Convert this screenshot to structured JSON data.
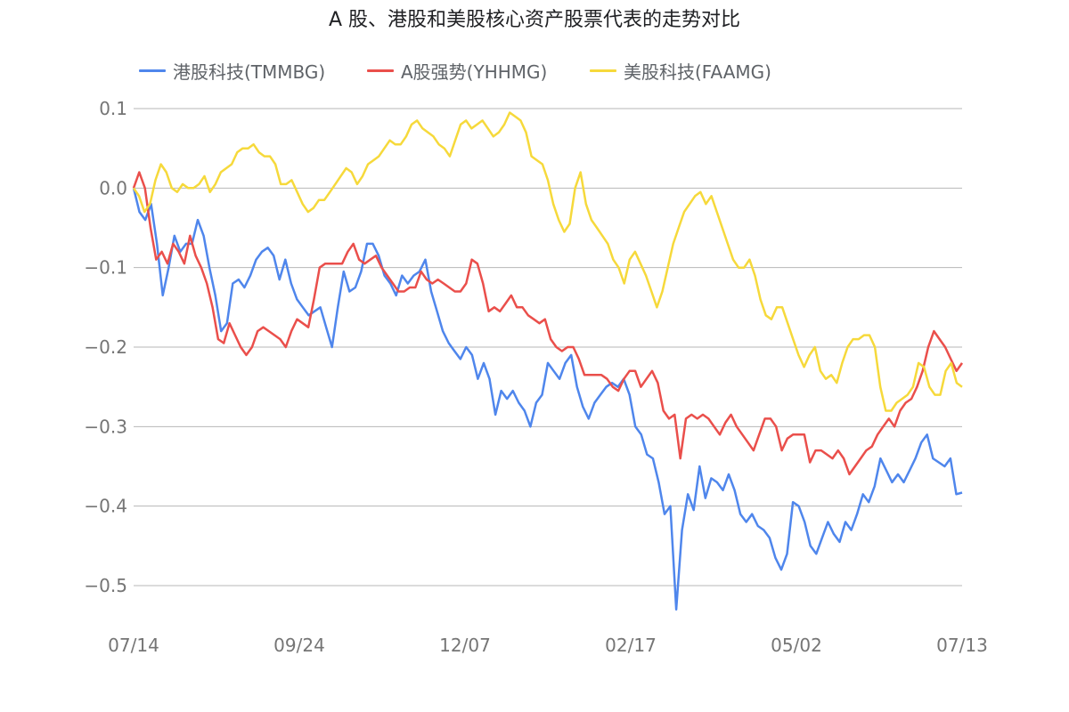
{
  "colors": {
    "hk_tech": "#4f86ec",
    "a_share": "#ea4f4b",
    "us_tech": "#f6d93b",
    "gridline": "#b7b7b7",
    "axis_text": "#757575",
    "title_text": "#202124"
  },
  "chart_data": {
    "type": "line",
    "title": "A 股、港股和美股核心资产股票代表的走势对比",
    "xlabel": "",
    "ylabel": "",
    "ylim": [
      -0.53,
      0.1
    ],
    "yticks": [
      0.1,
      0.0,
      -0.1,
      -0.2,
      -0.3,
      -0.4,
      -0.5
    ],
    "ytick_labels": [
      "0.1",
      "0.0",
      "−0.1",
      "−0.2",
      "−0.3",
      "−0.4",
      "−0.5"
    ],
    "xtick_labels": [
      "07/14",
      "09/24",
      "12/07",
      "02/17",
      "05/02",
      "07/13"
    ],
    "grid": true,
    "legend_position": "top",
    "series": [
      {
        "name": "港股科技(TMMBG)",
        "color_key": "hk_tech",
        "values": [
          0.0,
          -0.03,
          -0.04,
          -0.02,
          -0.07,
          -0.135,
          -0.1,
          -0.06,
          -0.08,
          -0.07,
          -0.07,
          -0.04,
          -0.06,
          -0.1,
          -0.135,
          -0.18,
          -0.17,
          -0.12,
          -0.115,
          -0.125,
          -0.11,
          -0.09,
          -0.08,
          -0.075,
          -0.085,
          -0.115,
          -0.09,
          -0.12,
          -0.14,
          -0.15,
          -0.16,
          -0.155,
          -0.15,
          -0.175,
          -0.2,
          -0.15,
          -0.105,
          -0.13,
          -0.125,
          -0.105,
          -0.07,
          -0.07,
          -0.085,
          -0.11,
          -0.12,
          -0.135,
          -0.11,
          -0.12,
          -0.11,
          -0.105,
          -0.09,
          -0.13,
          -0.155,
          -0.18,
          -0.195,
          -0.205,
          -0.215,
          -0.2,
          -0.21,
          -0.24,
          -0.22,
          -0.24,
          -0.285,
          -0.255,
          -0.265,
          -0.255,
          -0.27,
          -0.28,
          -0.3,
          -0.27,
          -0.26,
          -0.22,
          -0.23,
          -0.24,
          -0.22,
          -0.21,
          -0.25,
          -0.275,
          -0.29,
          -0.27,
          -0.26,
          -0.25,
          -0.245,
          -0.25,
          -0.24,
          -0.26,
          -0.3,
          -0.31,
          -0.335,
          -0.34,
          -0.37,
          -0.41,
          -0.4,
          -0.53,
          -0.43,
          -0.385,
          -0.405,
          -0.35,
          -0.39,
          -0.365,
          -0.37,
          -0.38,
          -0.36,
          -0.38,
          -0.41,
          -0.42,
          -0.41,
          -0.425,
          -0.43,
          -0.44,
          -0.465,
          -0.48,
          -0.46,
          -0.395,
          -0.4,
          -0.42,
          -0.45,
          -0.46,
          -0.44,
          -0.42,
          -0.435,
          -0.445,
          -0.42,
          -0.43,
          -0.41,
          -0.385,
          -0.395,
          -0.375,
          -0.34,
          -0.355,
          -0.37,
          -0.36,
          -0.37,
          -0.355,
          -0.34,
          -0.32,
          -0.31,
          -0.34,
          -0.345,
          -0.35,
          -0.34,
          -0.385,
          -0.383
        ]
      },
      {
        "name": "A股强势(YHHMG)",
        "color_key": "a_share",
        "values": [
          0.0,
          0.02,
          0.0,
          -0.05,
          -0.09,
          -0.08,
          -0.095,
          -0.07,
          -0.08,
          -0.095,
          -0.06,
          -0.085,
          -0.1,
          -0.12,
          -0.15,
          -0.19,
          -0.195,
          -0.17,
          -0.185,
          -0.2,
          -0.21,
          -0.2,
          -0.18,
          -0.175,
          -0.18,
          -0.185,
          -0.19,
          -0.2,
          -0.18,
          -0.165,
          -0.17,
          -0.175,
          -0.14,
          -0.1,
          -0.095,
          -0.095,
          -0.095,
          -0.095,
          -0.08,
          -0.07,
          -0.09,
          -0.095,
          -0.09,
          -0.085,
          -0.1,
          -0.11,
          -0.12,
          -0.13,
          -0.13,
          -0.125,
          -0.125,
          -0.105,
          -0.115,
          -0.12,
          -0.115,
          -0.12,
          -0.125,
          -0.13,
          -0.13,
          -0.12,
          -0.09,
          -0.095,
          -0.12,
          -0.155,
          -0.15,
          -0.155,
          -0.145,
          -0.135,
          -0.15,
          -0.15,
          -0.16,
          -0.165,
          -0.17,
          -0.165,
          -0.19,
          -0.2,
          -0.205,
          -0.2,
          -0.2,
          -0.215,
          -0.235,
          -0.235,
          -0.235,
          -0.235,
          -0.24,
          -0.25,
          -0.255,
          -0.24,
          -0.23,
          -0.23,
          -0.25,
          -0.24,
          -0.23,
          -0.245,
          -0.28,
          -0.29,
          -0.285,
          -0.34,
          -0.29,
          -0.285,
          -0.29,
          -0.285,
          -0.29,
          -0.3,
          -0.31,
          -0.295,
          -0.285,
          -0.3,
          -0.31,
          -0.32,
          -0.33,
          -0.31,
          -0.29,
          -0.29,
          -0.3,
          -0.33,
          -0.315,
          -0.31,
          -0.31,
          -0.31,
          -0.345,
          -0.33,
          -0.33,
          -0.335,
          -0.34,
          -0.33,
          -0.34,
          -0.36,
          -0.35,
          -0.34,
          -0.33,
          -0.325,
          -0.31,
          -0.3,
          -0.29,
          -0.3,
          -0.28,
          -0.27,
          -0.265,
          -0.25,
          -0.23,
          -0.2,
          -0.18,
          -0.19,
          -0.2,
          -0.215,
          -0.23,
          -0.22
        ]
      },
      {
        "name": "美股科技(FAAMG)",
        "color_key": "us_tech",
        "values": [
          0.0,
          -0.01,
          -0.03,
          -0.02,
          0.01,
          0.03,
          0.02,
          0.0,
          -0.005,
          0.005,
          0.0,
          0.0,
          0.005,
          0.015,
          -0.005,
          0.005,
          0.02,
          0.025,
          0.03,
          0.045,
          0.05,
          0.05,
          0.055,
          0.045,
          0.04,
          0.04,
          0.03,
          0.005,
          0.005,
          0.01,
          -0.005,
          -0.02,
          -0.03,
          -0.025,
          -0.015,
          -0.015,
          -0.005,
          0.005,
          0.015,
          0.025,
          0.02,
          0.005,
          0.015,
          0.03,
          0.035,
          0.04,
          0.05,
          0.06,
          0.055,
          0.055,
          0.065,
          0.08,
          0.085,
          0.075,
          0.07,
          0.065,
          0.055,
          0.05,
          0.04,
          0.06,
          0.08,
          0.085,
          0.075,
          0.08,
          0.085,
          0.075,
          0.065,
          0.07,
          0.08,
          0.095,
          0.09,
          0.085,
          0.07,
          0.04,
          0.035,
          0.03,
          0.01,
          -0.02,
          -0.04,
          -0.055,
          -0.045,
          0.0,
          0.02,
          -0.02,
          -0.04,
          -0.05,
          -0.06,
          -0.07,
          -0.09,
          -0.1,
          -0.12,
          -0.09,
          -0.08,
          -0.095,
          -0.11,
          -0.13,
          -0.15,
          -0.13,
          -0.1,
          -0.07,
          -0.05,
          -0.03,
          -0.02,
          -0.01,
          -0.005,
          -0.02,
          -0.01,
          -0.03,
          -0.05,
          -0.07,
          -0.09,
          -0.1,
          -0.1,
          -0.09,
          -0.11,
          -0.14,
          -0.16,
          -0.165,
          -0.15,
          -0.15,
          -0.17,
          -0.19,
          -0.21,
          -0.225,
          -0.21,
          -0.2,
          -0.23,
          -0.24,
          -0.235,
          -0.245,
          -0.22,
          -0.2,
          -0.19,
          -0.19,
          -0.185,
          -0.185,
          -0.2,
          -0.25,
          -0.28,
          -0.28,
          -0.27,
          -0.265,
          -0.26,
          -0.25,
          -0.22,
          -0.225,
          -0.25,
          -0.26,
          -0.26,
          -0.23,
          -0.22,
          -0.245,
          -0.25
        ]
      }
    ]
  }
}
